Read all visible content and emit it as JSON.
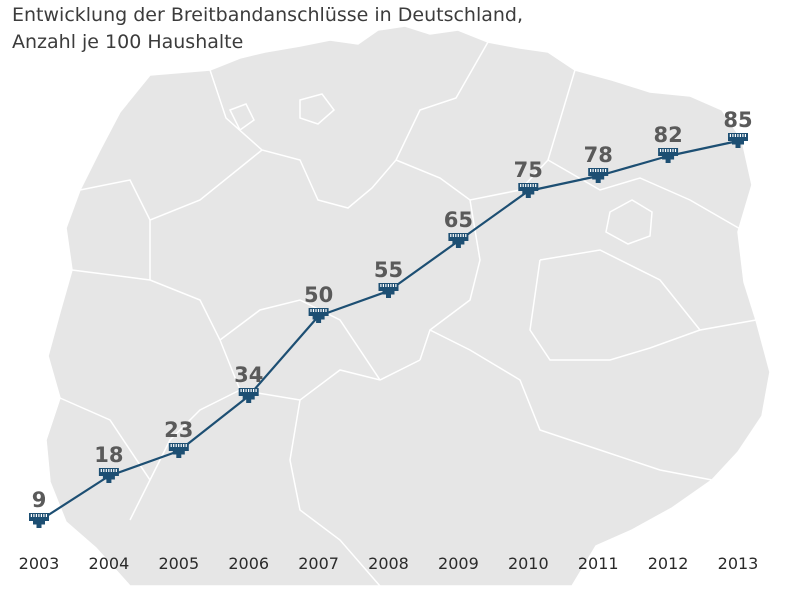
{
  "chart_data": {
    "type": "line",
    "title_lines": [
      "Entwicklung der Breitbandanschlüsse in Deutschland,",
      "Anzahl je 100 Haushalte"
    ],
    "xlabel": "",
    "ylabel": "",
    "categories": [
      "2003",
      "2004",
      "2005",
      "2006",
      "2007",
      "2008",
      "2009",
      "2010",
      "2011",
      "2012",
      "2013"
    ],
    "series": [
      {
        "values": [
          9,
          18,
          23,
          34,
          50,
          55,
          65,
          75,
          78,
          82,
          85
        ],
        "labels": [
          "9",
          "18",
          "23",
          "34",
          "50",
          "55",
          "65",
          "75",
          "78",
          "82",
          "85"
        ]
      }
    ],
    "ylim": [
      0,
      100
    ],
    "grid": false,
    "legend": "none",
    "background": "map-of-germany",
    "marker_icon": "network-plug-icon",
    "colors": {
      "line": "#1d4f73",
      "marker": "#1d4f73",
      "value_label": "#5a5a5a",
      "tick_label": "#2a2a2a",
      "map_fill": "#e6e6e6",
      "map_border": "#ffffff"
    }
  }
}
